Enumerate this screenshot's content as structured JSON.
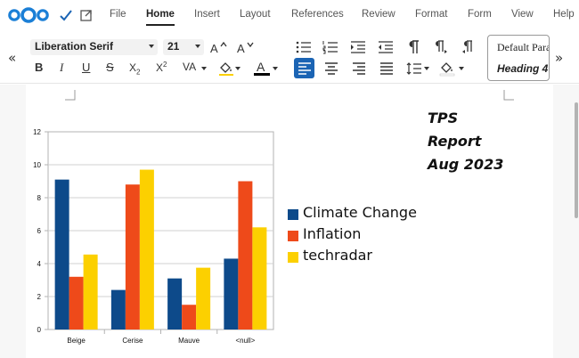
{
  "menubar": {
    "items": [
      "File",
      "Home",
      "Insert",
      "Layout",
      "References",
      "Review",
      "Format",
      "Form",
      "View",
      "Help"
    ],
    "active": "Home"
  },
  "toolbar": {
    "font_name": "Liberation Serif",
    "font_size": "21",
    "styles": [
      "Default Paragraph Style",
      "Heading 4"
    ],
    "colors": {
      "font_color_bar": "#000000",
      "align_left_active": "#1b64b4"
    }
  },
  "document": {
    "title_lines": [
      "TPS",
      "Report",
      "Aug 2023"
    ]
  },
  "chart_data": {
    "type": "bar",
    "categories": [
      "Beige",
      "Cerise",
      "Mauve",
      "<null>"
    ],
    "series": [
      {
        "name": "Climate Change",
        "color": "#0d4a8a",
        "values": [
          9.1,
          2.4,
          3.1,
          4.3
        ]
      },
      {
        "name": "Inflation",
        "color": "#ee4a1a",
        "values": [
          3.2,
          8.8,
          1.5,
          9.0
        ]
      },
      {
        "name": "techradar",
        "color": "#fcd000",
        "values": [
          4.55,
          9.7,
          3.75,
          6.2
        ]
      }
    ],
    "y_ticks": [
      "0",
      "2",
      "4",
      "6",
      "8",
      "10",
      "12"
    ],
    "ylim": [
      0,
      12
    ],
    "legend_position": "right",
    "grid": true
  }
}
